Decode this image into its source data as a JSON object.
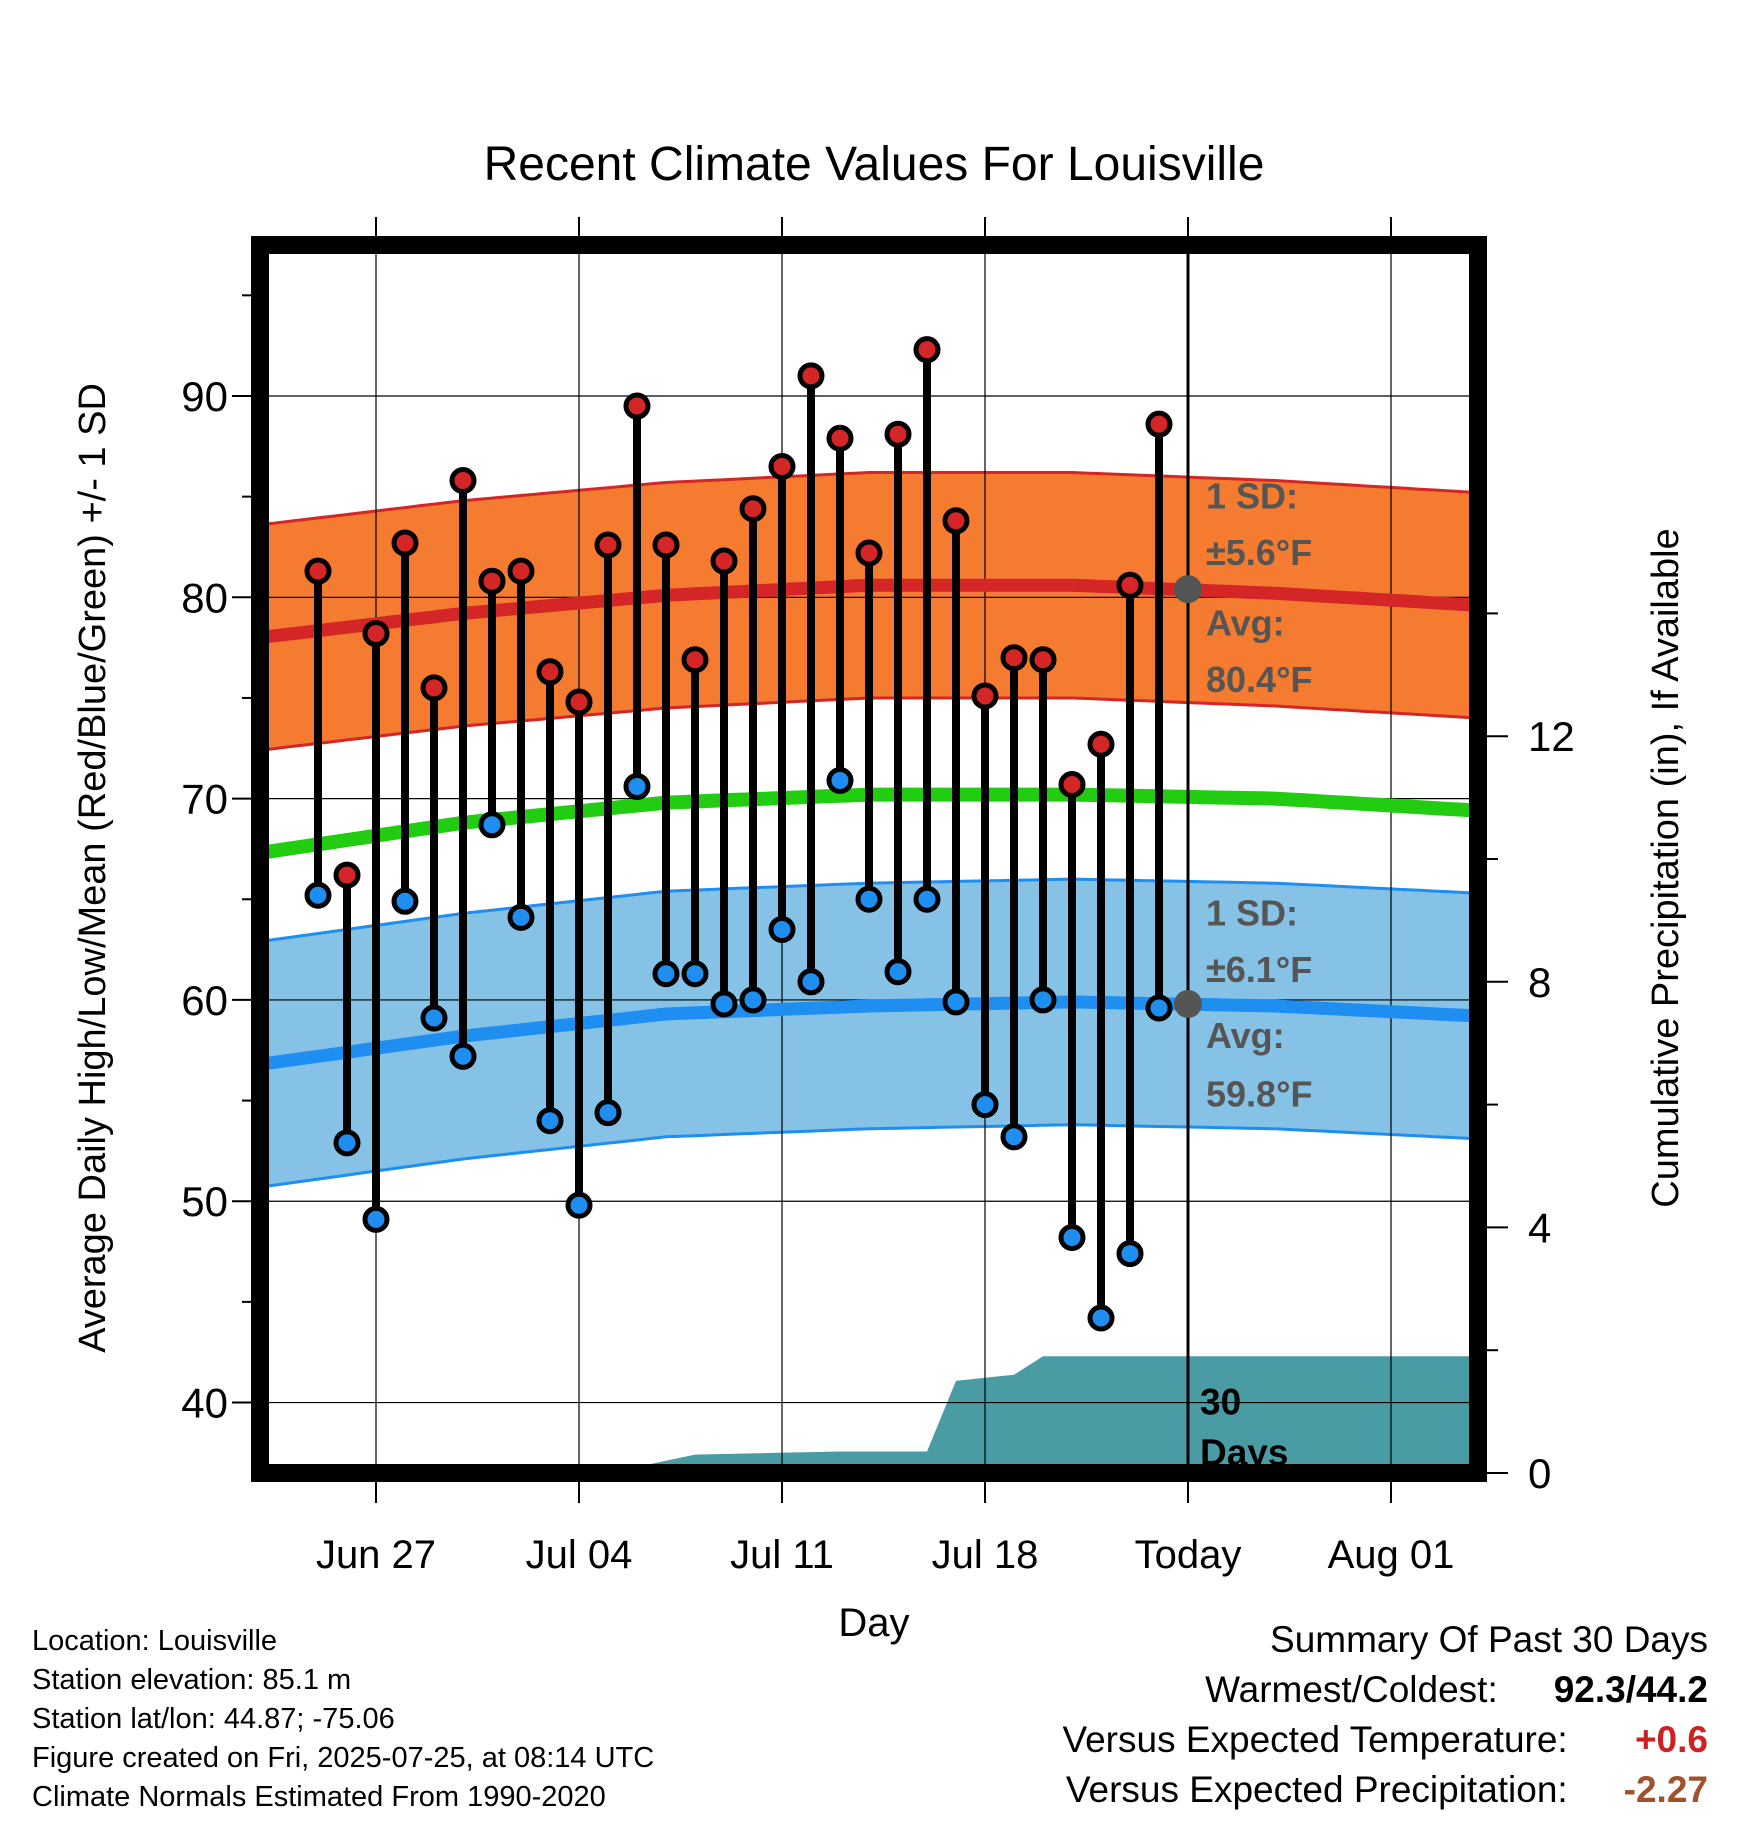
{
  "chart_data": {
    "type": "line",
    "title": "Recent Climate Values For Louisville",
    "xlabel": "Day",
    "ylabel": "Average Daily High/Low/Mean (Red/Blue/Green) +/- 1 SD",
    "y2label": "Cumulative Precipitation (in), If Available",
    "ylim": [
      36.5,
      97.5
    ],
    "y_ticks": [
      "40",
      "50",
      "60",
      "70",
      "80",
      "90"
    ],
    "y2lim": [
      0,
      20
    ],
    "y2_ticks": [
      "0",
      "4",
      "8",
      "12"
    ],
    "xlim": [
      "2025-06-23",
      "2025-08-04"
    ],
    "x_ticks": [
      {
        "date": "2025-06-27",
        "label": "Jun 27"
      },
      {
        "date": "2025-07-04",
        "label": "Jul 04"
      },
      {
        "date": "2025-07-11",
        "label": "Jul 11"
      },
      {
        "date": "2025-07-18",
        "label": "Jul 18"
      },
      {
        "date": "2025-07-25",
        "label": "Today"
      },
      {
        "date": "2025-08-01",
        "label": "Aug 01"
      }
    ],
    "today": "2025-07-25",
    "days_label": [
      "30",
      "Days"
    ],
    "grid": true,
    "normals": {
      "dates": [
        "2025-06-23",
        "2025-06-30",
        "2025-07-07",
        "2025-07-14",
        "2025-07-21",
        "2025-07-28",
        "2025-08-04"
      ],
      "high_mean": [
        78.0,
        79.2,
        80.1,
        80.6,
        80.6,
        80.2,
        79.6
      ],
      "high_sd": 5.6,
      "low_mean": [
        56.8,
        58.2,
        59.3,
        59.7,
        59.9,
        59.7,
        59.2
      ],
      "low_sd": 6.1,
      "mean": [
        67.3,
        68.8,
        69.8,
        70.2,
        70.2,
        70.0,
        69.4
      ]
    },
    "annotations": {
      "high_sd_label": [
        "1 SD:",
        "±5.6°F"
      ],
      "high_avg_label": [
        "Avg:",
        "80.4°F"
      ],
      "low_sd_label": [
        "1 SD:",
        "±6.1°F"
      ],
      "low_avg_label": [
        "Avg:",
        "59.8°F"
      ],
      "high_avg_today": 80.4,
      "low_avg_today": 59.8
    },
    "series": [
      {
        "name": "High",
        "dates": [
          "2025-06-25",
          "2025-06-26",
          "2025-06-27",
          "2025-06-28",
          "2025-06-29",
          "2025-06-30",
          "2025-07-01",
          "2025-07-02",
          "2025-07-03",
          "2025-07-04",
          "2025-07-05",
          "2025-07-06",
          "2025-07-07",
          "2025-07-08",
          "2025-07-09",
          "2025-07-10",
          "2025-07-11",
          "2025-07-12",
          "2025-07-13",
          "2025-07-14",
          "2025-07-15",
          "2025-07-16",
          "2025-07-17",
          "2025-07-18",
          "2025-07-19",
          "2025-07-20",
          "2025-07-21",
          "2025-07-22",
          "2025-07-23",
          "2025-07-24"
        ],
        "values": [
          81.3,
          66.2,
          78.2,
          82.7,
          75.5,
          85.8,
          80.8,
          81.3,
          76.3,
          74.8,
          82.6,
          89.5,
          82.6,
          76.9,
          81.8,
          84.4,
          86.5,
          91.0,
          87.9,
          82.2,
          88.1,
          92.3,
          83.8,
          75.1,
          77.0,
          76.9,
          70.7,
          72.7,
          80.6,
          88.6
        ]
      },
      {
        "name": "Low",
        "dates": [
          "2025-06-25",
          "2025-06-26",
          "2025-06-27",
          "2025-06-28",
          "2025-06-29",
          "2025-06-30",
          "2025-07-01",
          "2025-07-02",
          "2025-07-03",
          "2025-07-04",
          "2025-07-05",
          "2025-07-06",
          "2025-07-07",
          "2025-07-08",
          "2025-07-09",
          "2025-07-10",
          "2025-07-11",
          "2025-07-12",
          "2025-07-13",
          "2025-07-14",
          "2025-07-15",
          "2025-07-16",
          "2025-07-17",
          "2025-07-18",
          "2025-07-19",
          "2025-07-20",
          "2025-07-21",
          "2025-07-22",
          "2025-07-23",
          "2025-07-24"
        ],
        "values": [
          65.2,
          52.9,
          49.1,
          64.9,
          59.1,
          57.2,
          68.7,
          64.1,
          54.0,
          49.8,
          54.4,
          70.6,
          61.3,
          61.3,
          59.8,
          60.0,
          63.5,
          60.9,
          70.9,
          65.0,
          61.4,
          65.0,
          59.9,
          54.8,
          53.2,
          60.0,
          48.2,
          44.2,
          47.4,
          59.6
        ]
      },
      {
        "name": "Cumulative Precipitation",
        "dates": [
          "2025-06-23",
          "2025-07-02",
          "2025-07-06",
          "2025-07-08",
          "2025-07-13",
          "2025-07-16",
          "2025-07-17",
          "2025-07-18",
          "2025-07-19",
          "2025-07-20",
          "2025-07-25",
          "2025-08-04"
        ],
        "values": [
          0.0,
          0.05,
          0.1,
          0.3,
          0.35,
          0.35,
          1.5,
          1.55,
          1.6,
          1.9,
          1.9,
          1.9
        ]
      }
    ]
  },
  "footer": {
    "lines": [
      "Location: Louisville",
      "Station elevation: 85.1 m",
      "Station lat/lon: 44.87; -75.06",
      "Figure created on Fri, 2025-07-25, at 08:14 UTC",
      "Climate Normals Estimated From 1990-2020"
    ]
  },
  "summary": {
    "title": "Summary Of Past 30 Days",
    "warmest_coldest_label": "Warmest/Coldest:",
    "warmest_coldest_value": "92.3/44.2",
    "temp_label": "Versus Expected Temperature:",
    "temp_value": "+0.6",
    "prcp_label": "Versus Expected Precipitation:",
    "prcp_value": "-2.27"
  },
  "colors": {
    "high_band": "#f47b30",
    "high_line": "#d42626",
    "low_band": "#85c2e6",
    "low_line": "#1e8ff0",
    "mean_line": "#22cc11",
    "precip": "#4a9ca4",
    "marker_high": "#d42626",
    "marker_low": "#1e8ff0",
    "annotation": "#555555"
  }
}
